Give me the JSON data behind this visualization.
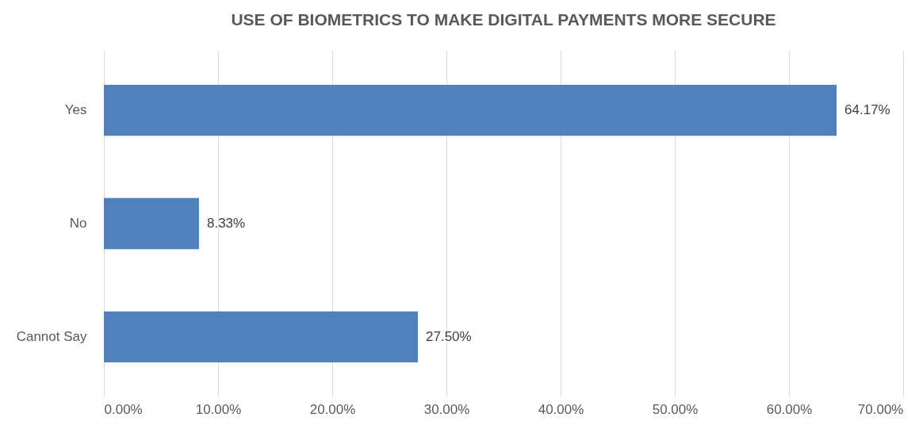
{
  "chart_data": {
    "type": "bar",
    "orientation": "horizontal",
    "title": "USE OF  BIOMETRICS TO MAKE DIGITAL PAYMENTS MORE SECURE",
    "categories": [
      "Yes",
      "No",
      "Cannot Say"
    ],
    "values": [
      64.17,
      8.33,
      27.5
    ],
    "color": "#4f81bd",
    "value_labels": [
      "64.17%",
      "8.33%",
      "27.50%"
    ],
    "xlim": [
      0,
      70
    ],
    "xticks": [
      {
        "value": 0,
        "label": "0.00%"
      },
      {
        "value": 10,
        "label": "10.00%"
      },
      {
        "value": 20,
        "label": "20.00%"
      },
      {
        "value": 30,
        "label": "30.00%"
      },
      {
        "value": 40,
        "label": "40.00%"
      },
      {
        "value": 50,
        "label": "50.00%"
      },
      {
        "value": 60,
        "label": "60.00%"
      },
      {
        "value": 70,
        "label": "70.00%"
      }
    ],
    "grid": "x"
  }
}
